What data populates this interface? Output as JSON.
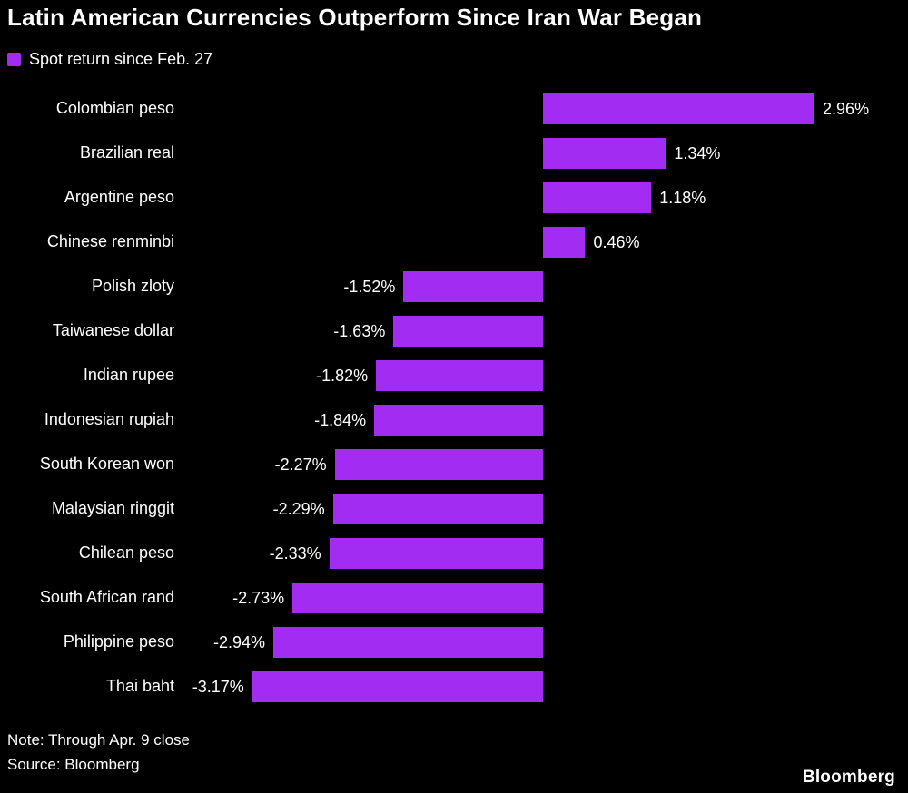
{
  "title": "Latin American Currencies Outperform Since Iran War Began",
  "legend": {
    "label": "Spot return since Feb. 27",
    "color": "#a32cf2"
  },
  "chart_data": {
    "type": "bar",
    "orientation": "horizontal",
    "title": "Latin American Currencies Outperform Since Iran War Began",
    "series_name": "Spot return since Feb. 27",
    "categories": [
      "Colombian peso",
      "Brazilian real",
      "Argentine peso",
      "Chinese renminbi",
      "Polish zloty",
      "Taiwanese dollar",
      "Indian rupee",
      "Indonesian rupiah",
      "South Korean won",
      "Malaysian ringgit",
      "Chilean peso",
      "South African rand",
      "Philippine peso",
      "Thai baht"
    ],
    "values": [
      2.96,
      1.34,
      1.18,
      0.46,
      -1.52,
      -1.63,
      -1.82,
      -1.84,
      -2.27,
      -2.29,
      -2.33,
      -2.73,
      -2.94,
      -3.17
    ],
    "value_labels": [
      "2.96%",
      "1.34%",
      "1.18%",
      "0.46%",
      "-1.52%",
      "-1.63%",
      "-1.82%",
      "-1.84%",
      "-2.27%",
      "-2.29%",
      "-2.33%",
      "-2.73%",
      "-2.94%",
      "-3.17%"
    ],
    "unit": "%",
    "xlim": [
      -3.9,
      3.9
    ],
    "grid": false,
    "legend_position": "top-left",
    "bar_color": "#a32cf2",
    "background": "#000000",
    "text_color": "#ffffff"
  },
  "footer": {
    "note": "Note: Through Apr. 9 close",
    "source": "Source: Bloomberg",
    "brand": "Bloomberg"
  }
}
